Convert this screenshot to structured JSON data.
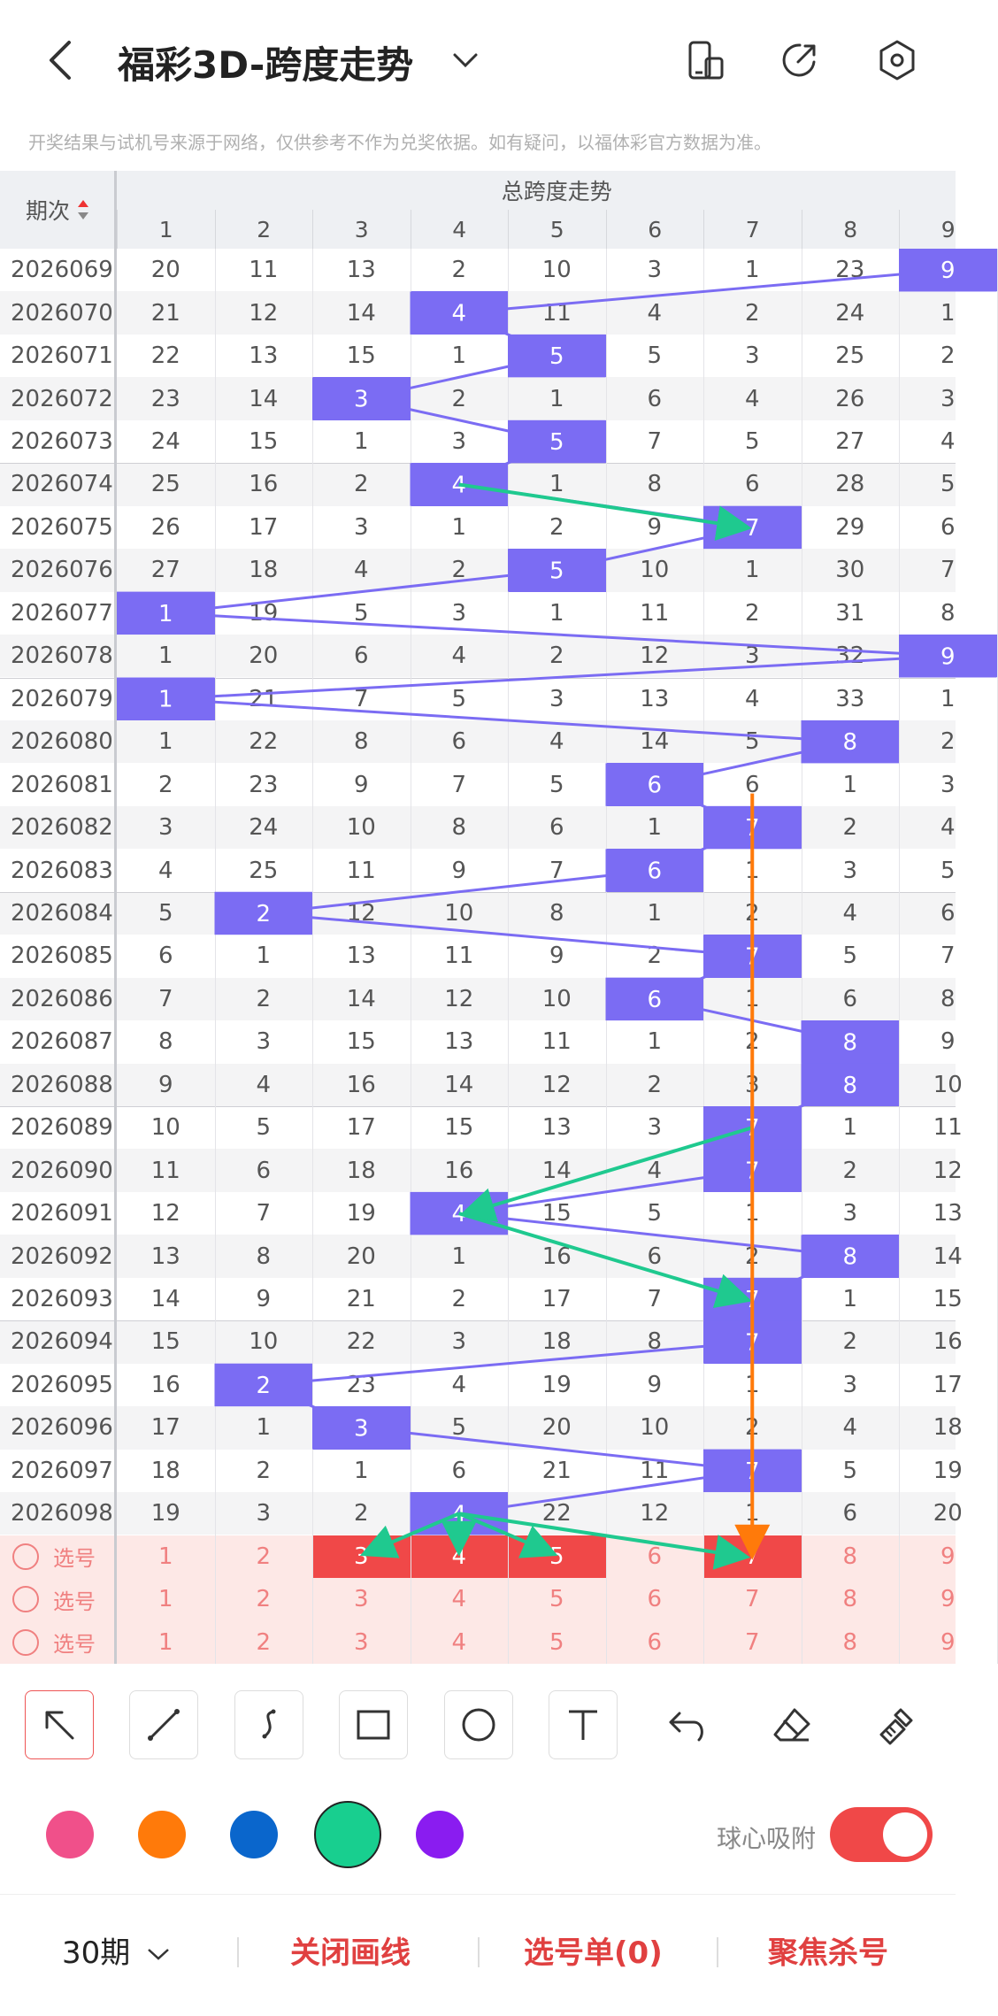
{
  "header": {
    "title": "福彩3D-跨度走势",
    "notice": "开奖结果与试机号来源于网络，仅供参考不作为兑奖依据。如有疑问，以福体彩官方数据为准。"
  },
  "table": {
    "group_title": "总跨度走势",
    "period_header": "期次",
    "columns": [
      "1",
      "2",
      "3",
      "4",
      "5",
      "6",
      "7",
      "8",
      "9"
    ],
    "rows": [
      {
        "period": "2026069",
        "hit": 9,
        "values": [
          "20",
          "11",
          "13",
          "2",
          "10",
          "3",
          "1",
          "23",
          "9"
        ]
      },
      {
        "period": "2026070",
        "hit": 4,
        "values": [
          "21",
          "12",
          "14",
          "4",
          "11",
          "4",
          "2",
          "24",
          "1"
        ]
      },
      {
        "period": "2026071",
        "hit": 5,
        "values": [
          "22",
          "13",
          "15",
          "1",
          "5",
          "5",
          "3",
          "25",
          "2"
        ]
      },
      {
        "period": "2026072",
        "hit": 3,
        "values": [
          "23",
          "14",
          "3",
          "2",
          "1",
          "6",
          "4",
          "26",
          "3"
        ]
      },
      {
        "period": "2026073",
        "hit": 5,
        "values": [
          "24",
          "15",
          "1",
          "3",
          "5",
          "7",
          "5",
          "27",
          "4"
        ]
      },
      {
        "period": "2026074",
        "hit": 4,
        "values": [
          "25",
          "16",
          "2",
          "4",
          "1",
          "8",
          "6",
          "28",
          "5"
        ]
      },
      {
        "period": "2026075",
        "hit": 7,
        "values": [
          "26",
          "17",
          "3",
          "1",
          "2",
          "9",
          "7",
          "29",
          "6"
        ]
      },
      {
        "period": "2026076",
        "hit": 5,
        "values": [
          "27",
          "18",
          "4",
          "2",
          "5",
          "10",
          "1",
          "30",
          "7"
        ]
      },
      {
        "period": "2026077",
        "hit": 1,
        "values": [
          "1",
          "19",
          "5",
          "3",
          "1",
          "11",
          "2",
          "31",
          "8"
        ]
      },
      {
        "period": "2026078",
        "hit": 9,
        "values": [
          "1",
          "20",
          "6",
          "4",
          "2",
          "12",
          "3",
          "32",
          "9"
        ]
      },
      {
        "period": "2026079",
        "hit": 1,
        "values": [
          "1",
          "21",
          "7",
          "5",
          "3",
          "13",
          "4",
          "33",
          "1"
        ]
      },
      {
        "period": "2026080",
        "hit": 8,
        "values": [
          "1",
          "22",
          "8",
          "6",
          "4",
          "14",
          "5",
          "8",
          "2"
        ]
      },
      {
        "period": "2026081",
        "hit": 6,
        "values": [
          "2",
          "23",
          "9",
          "7",
          "5",
          "6",
          "6",
          "1",
          "3"
        ]
      },
      {
        "period": "2026082",
        "hit": 7,
        "values": [
          "3",
          "24",
          "10",
          "8",
          "6",
          "1",
          "7",
          "2",
          "4"
        ]
      },
      {
        "period": "2026083",
        "hit": 6,
        "values": [
          "4",
          "25",
          "11",
          "9",
          "7",
          "6",
          "1",
          "3",
          "5"
        ]
      },
      {
        "period": "2026084",
        "hit": 2,
        "values": [
          "5",
          "2",
          "12",
          "10",
          "8",
          "1",
          "2",
          "4",
          "6"
        ]
      },
      {
        "period": "2026085",
        "hit": 7,
        "values": [
          "6",
          "1",
          "13",
          "11",
          "9",
          "2",
          "7",
          "5",
          "7"
        ]
      },
      {
        "period": "2026086",
        "hit": 6,
        "values": [
          "7",
          "2",
          "14",
          "12",
          "10",
          "6",
          "1",
          "6",
          "8"
        ]
      },
      {
        "period": "2026087",
        "hit": 8,
        "values": [
          "8",
          "3",
          "15",
          "13",
          "11",
          "1",
          "2",
          "8",
          "9"
        ]
      },
      {
        "period": "2026088",
        "hit": 8,
        "values": [
          "9",
          "4",
          "16",
          "14",
          "12",
          "2",
          "3",
          "8",
          "10"
        ]
      },
      {
        "period": "2026089",
        "hit": 7,
        "values": [
          "10",
          "5",
          "17",
          "15",
          "13",
          "3",
          "7",
          "1",
          "11"
        ]
      },
      {
        "period": "2026090",
        "hit": 7,
        "values": [
          "11",
          "6",
          "18",
          "16",
          "14",
          "4",
          "7",
          "2",
          "12"
        ]
      },
      {
        "period": "2026091",
        "hit": 4,
        "values": [
          "12",
          "7",
          "19",
          "4",
          "15",
          "5",
          "1",
          "3",
          "13"
        ]
      },
      {
        "period": "2026092",
        "hit": 8,
        "values": [
          "13",
          "8",
          "20",
          "1",
          "16",
          "6",
          "2",
          "8",
          "14"
        ]
      },
      {
        "period": "2026093",
        "hit": 7,
        "values": [
          "14",
          "9",
          "21",
          "2",
          "17",
          "7",
          "7",
          "1",
          "15"
        ]
      },
      {
        "period": "2026094",
        "hit": 7,
        "values": [
          "15",
          "10",
          "22",
          "3",
          "18",
          "8",
          "7",
          "2",
          "16"
        ]
      },
      {
        "period": "2026095",
        "hit": 2,
        "values": [
          "16",
          "2",
          "23",
          "4",
          "19",
          "9",
          "1",
          "3",
          "17"
        ]
      },
      {
        "period": "2026096",
        "hit": 3,
        "values": [
          "17",
          "1",
          "3",
          "5",
          "20",
          "10",
          "2",
          "4",
          "18"
        ]
      },
      {
        "period": "2026097",
        "hit": 7,
        "values": [
          "18",
          "2",
          "1",
          "6",
          "21",
          "11",
          "7",
          "5",
          "19"
        ]
      },
      {
        "period": "2026098",
        "hit": 4,
        "values": [
          "19",
          "3",
          "2",
          "4",
          "22",
          "12",
          "1",
          "6",
          "20"
        ]
      }
    ],
    "select_rows": [
      {
        "label": "选号",
        "selected": [
          3,
          4,
          5,
          7
        ]
      },
      {
        "label": "选号",
        "selected": []
      },
      {
        "label": "选号",
        "selected": []
      }
    ],
    "select_values": [
      "1",
      "2",
      "3",
      "4",
      "5",
      "6",
      "7",
      "8",
      "9"
    ]
  },
  "toolbar": {
    "tools": [
      "arrow-icon",
      "line-icon",
      "curve-icon",
      "rectangle-icon",
      "circle-icon",
      "text-icon",
      "undo-icon",
      "eraser-icon",
      "brush-clear-icon"
    ],
    "colors": [
      "#f0508a",
      "#ff7a0a",
      "#0a66cc",
      "#18cf8f",
      "#8a1cf0"
    ],
    "selected_color": "#18cf8f",
    "snap_label": "球心吸附",
    "snap_on": true
  },
  "bottom": {
    "period_select": "30期",
    "close_draw": "关闭画线",
    "ticket": "选号单(0)",
    "focus_kill": "聚焦杀号"
  }
}
